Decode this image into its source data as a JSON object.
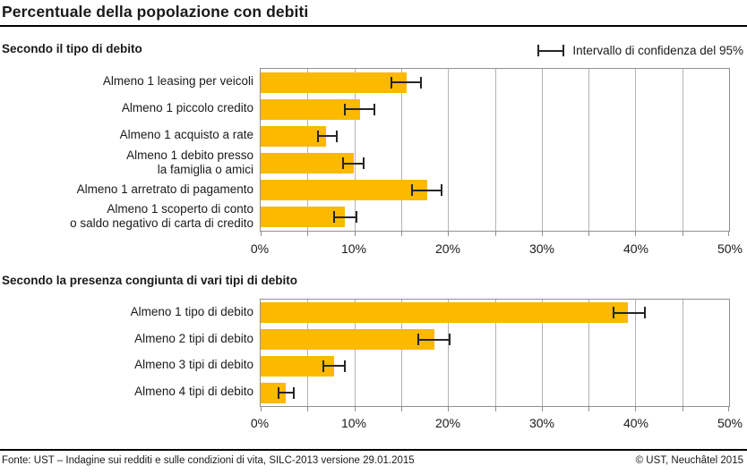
{
  "title": "Percentuale della popolazione con debiti",
  "legend": {
    "label": "Intervallo di confidenza del 95%"
  },
  "footer": {
    "source": "Fonte: UST – Indagine sui redditi e sulle condizioni di vita, SILC-2013 versione 29.01.2015",
    "copyright": "© UST, Neuchâtel 2015"
  },
  "colors": {
    "bar": "#FBB900",
    "grid": "#b3b3b3",
    "frame": "#909090",
    "error_bar": "#262626",
    "text": "#1a1a1a"
  },
  "axis": {
    "min": 0,
    "max": 50,
    "grid_step": 5,
    "label_step": 10,
    "tick_labels": [
      "0%",
      "10%",
      "20%",
      "30%",
      "40%",
      "50%"
    ]
  },
  "chart_data": [
    {
      "type": "bar",
      "orientation": "horizontal",
      "title": "Secondo il tipo di debito",
      "xlim": [
        0,
        50
      ],
      "categories": [
        "Almeno 1 leasing per veicoli",
        "Almeno 1 piccolo credito",
        "Almeno 1 acquisto a rate",
        "Almeno 1 debito presso\nla famiglia o amici",
        "Almeno 1 arretrato di pagamento",
        "Almeno 1 scoperto di conto\no saldo negativo di carta di credito"
      ],
      "values": [
        15.6,
        10.6,
        7.0,
        9.9,
        17.8,
        9.0
      ],
      "ci_low": [
        14.0,
        9.0,
        6.1,
        8.8,
        16.2,
        7.8
      ],
      "ci_high": [
        17.1,
        12.1,
        8.1,
        11.0,
        19.3,
        10.2
      ]
    },
    {
      "type": "bar",
      "orientation": "horizontal",
      "title": "Secondo la presenza congiunta di vari tipi di debito",
      "xlim": [
        0,
        50
      ],
      "categories": [
        "Almeno 1 tipo di debito",
        "Almeno 2 tipi di debito",
        "Almeno 3 tipi di debito",
        "Almeno 4 tipi di debito"
      ],
      "values": [
        39.2,
        18.5,
        7.8,
        2.7
      ],
      "ci_low": [
        37.7,
        16.8,
        6.7,
        1.9
      ],
      "ci_high": [
        41.0,
        20.2,
        9.0,
        3.5
      ]
    }
  ]
}
